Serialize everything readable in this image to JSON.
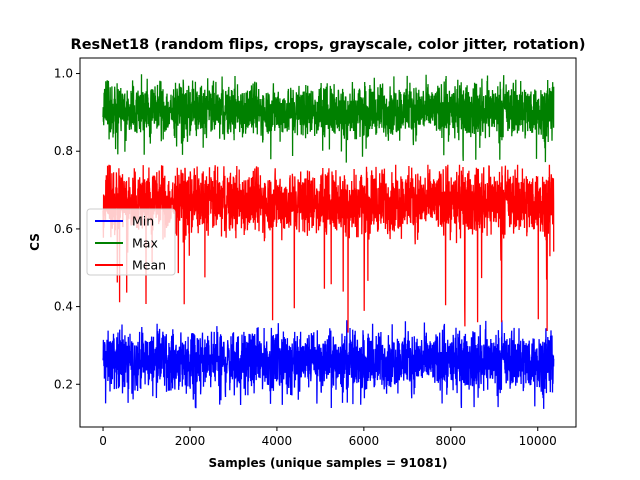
{
  "chart_data": {
    "type": "line",
    "title": "ResNet18 (random flips, crops, grayscale, color jitter, rotation)",
    "xlabel": "Samples (unique samples = 91081)",
    "ylabel": "CS",
    "xlim": [
      -530,
      10880
    ],
    "ylim": [
      0.09,
      1.04
    ],
    "xticks": [
      0,
      2000,
      4000,
      6000,
      8000,
      10000
    ],
    "yticks": [
      0.2,
      0.4,
      0.6,
      0.8,
      1.0
    ],
    "ytick_labels": [
      "0.2",
      "0.4",
      "0.6",
      "0.8",
      "1.0"
    ],
    "grid": false,
    "legend_position": "center-left",
    "n_points": 10370,
    "series": [
      {
        "name": "Min",
        "color": "#0000ff",
        "typical_range": [
          0.19,
          0.33
        ],
        "center": 0.255,
        "min": 0.135,
        "max": 0.37
      },
      {
        "name": "Max",
        "color": "#008000",
        "typical_range": [
          0.84,
          0.97
        ],
        "center": 0.905,
        "min": 0.77,
        "max": 1.0
      },
      {
        "name": "Mean",
        "color": "#ff0000",
        "typical_range": [
          0.59,
          0.75
        ],
        "center": 0.675,
        "min": 0.33,
        "max": 0.765
      }
    ]
  }
}
